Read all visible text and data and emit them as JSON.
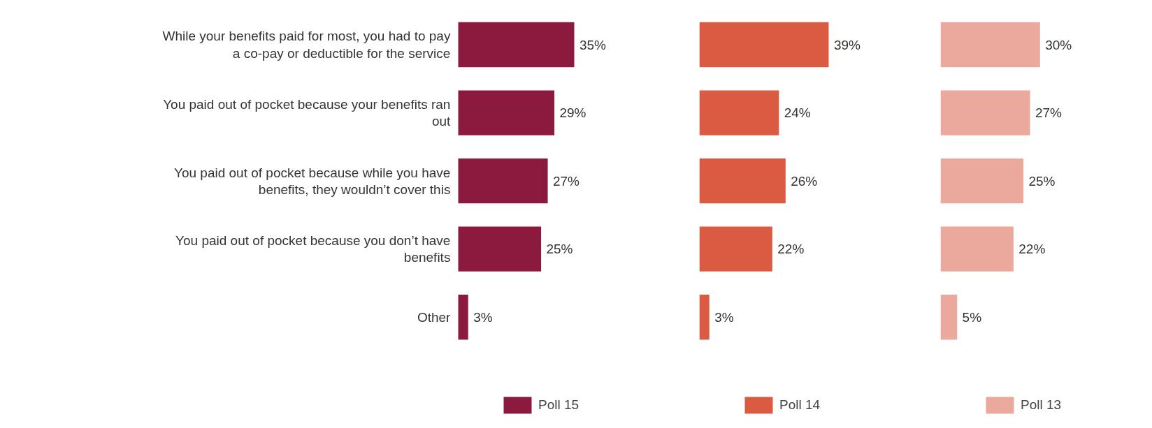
{
  "chart_data": [
    {
      "type": "bar",
      "orientation": "horizontal",
      "tick_labels": "y",
      "legend": "bottom",
      "categories": [
        "While your benefits paid for most, you had to pay a co-pay or deductible for the service",
        "You paid out of pocket because your benefits ran out",
        "You paid out of pocket because while you have benefits, they wouldn’t cover this",
        "You paid out of pocket because you don’t have benefits",
        "Other"
      ],
      "series": [
        {
          "name": "Poll 15",
          "color": "#8b1a3e",
          "values": [
            35,
            29,
            27,
            25,
            3
          ],
          "value_labels": [
            "35%",
            "29%",
            "27%",
            "25%",
            "3%"
          ]
        }
      ]
    },
    {
      "type": "bar",
      "orientation": "horizontal",
      "tick_labels": false,
      "legend": "bottom",
      "categories": [
        "While your benefits paid for most, you had to pay a co-pay or deductible for the service",
        "You paid out of pocket because your benefits ran out",
        "You paid out of pocket because while you have benefits, they wouldn’t cover this",
        "You paid out of pocket because you don’t have benefits",
        "Other"
      ],
      "series": [
        {
          "name": "Poll 14",
          "color": "#db5a42",
          "values": [
            39,
            24,
            26,
            22,
            3
          ],
          "value_labels": [
            "39%",
            "24%",
            "26%",
            "22%",
            "3%"
          ]
        }
      ]
    },
    {
      "type": "bar",
      "orientation": "horizontal",
      "tick_labels": false,
      "legend": "bottom",
      "categories": [
        "While your benefits paid for most, you had to pay a co-pay or deductible for the service",
        "You paid out of pocket because your benefits ran out",
        "You paid out of pocket because while you have benefits, they wouldn’t cover this",
        "You paid out of pocket because you don’t have benefits",
        "Other"
      ],
      "series": [
        {
          "name": "Poll 13",
          "color": "#eba89c",
          "values": [
            30,
            27,
            25,
            22,
            5
          ],
          "value_labels": [
            "30%",
            "27%",
            "25%",
            "22%",
            "5%"
          ]
        }
      ]
    }
  ]
}
